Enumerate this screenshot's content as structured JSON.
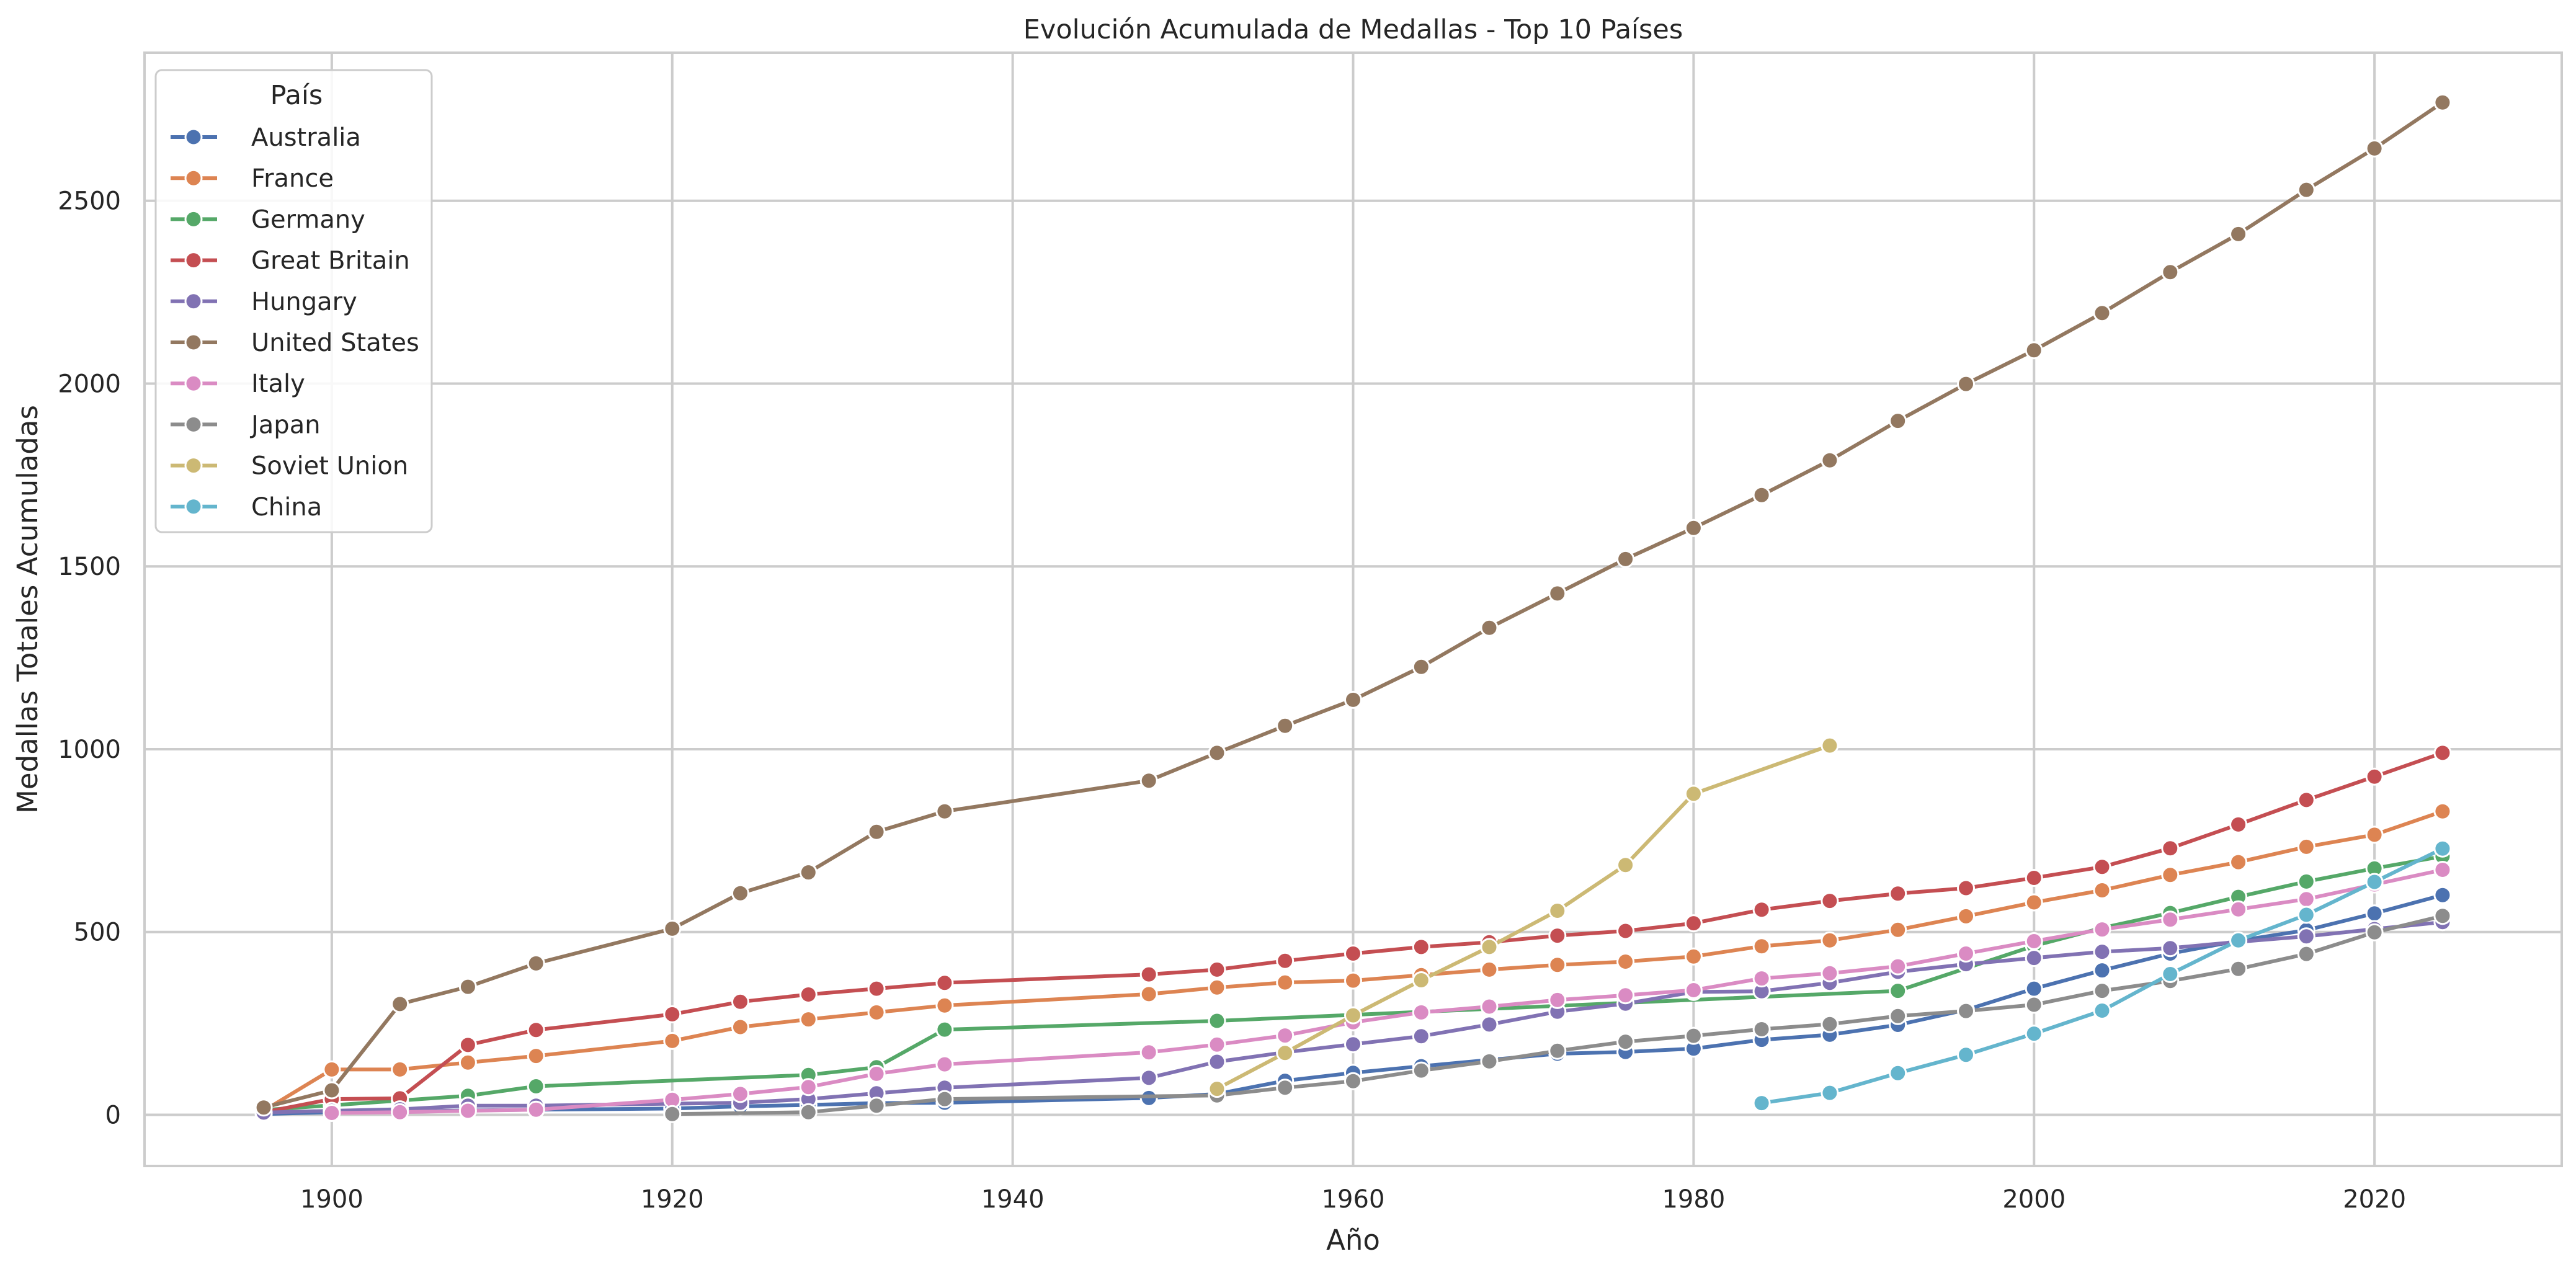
{
  "chart_data": {
    "type": "line",
    "title": "Evolución Acumulada de Medallas - Top 10 Países",
    "xlabel": "Año",
    "ylabel": "Medallas Totales Acumuladas",
    "xlim": [
      1889,
      2031
    ],
    "ylim": [
      -140,
      2905
    ],
    "xticks": [
      1900,
      1920,
      1940,
      1960,
      1980,
      2000,
      2020
    ],
    "yticks": [
      0,
      500,
      1000,
      1500,
      2000,
      2500
    ],
    "grid": true,
    "legend": {
      "title": "País",
      "placement": "top-left"
    },
    "series": [
      {
        "name": "Australia",
        "color": "#4c72b0",
        "x": [
          1896,
          1900,
          1904,
          1908,
          1912,
          1920,
          1924,
          1928,
          1932,
          1936,
          1948,
          1952,
          1956,
          1960,
          1964,
          1968,
          1972,
          1976,
          1980,
          1984,
          1988,
          1992,
          1996,
          2000,
          2004,
          2008,
          2012,
          2016,
          2020,
          2024
        ],
        "y": [
          2,
          7,
          9,
          12,
          14,
          17,
          23,
          27,
          32,
          33,
          46,
          57,
          93,
          115,
          133,
          150,
          167,
          172,
          181,
          205,
          219,
          246,
          287,
          345,
          395,
          441,
          476,
          505,
          551,
          601
        ]
      },
      {
        "name": "France",
        "color": "#dd8452",
        "x": [
          1896,
          1900,
          1904,
          1908,
          1912,
          1920,
          1924,
          1928,
          1932,
          1936,
          1948,
          1952,
          1956,
          1960,
          1964,
          1968,
          1972,
          1976,
          1980,
          1984,
          1988,
          1992,
          1996,
          2000,
          2004,
          2008,
          2012,
          2016,
          2020,
          2024
        ],
        "y": [
          11,
          124,
          124,
          143,
          161,
          202,
          240,
          261,
          280,
          299,
          330,
          348,
          362,
          367,
          382,
          397,
          410,
          419,
          433,
          461,
          477,
          506,
          543,
          581,
          614,
          656,
          691,
          733,
          766,
          830
        ]
      },
      {
        "name": "Germany",
        "color": "#55a868",
        "x": [
          1896,
          1900,
          1904,
          1908,
          1912,
          1928,
          1932,
          1936,
          1952,
          1992,
          2000,
          2004,
          2008,
          2012,
          2016,
          2020,
          2024
        ],
        "y": [
          13,
          26,
          39,
          52,
          78,
          109,
          130,
          233,
          257,
          339,
          462,
          511,
          552,
          596,
          638,
          674,
          707
        ]
      },
      {
        "name": "Great Britain",
        "color": "#c44e52",
        "x": [
          1896,
          1900,
          1904,
          1908,
          1912,
          1920,
          1924,
          1928,
          1932,
          1936,
          1948,
          1952,
          1956,
          1960,
          1964,
          1968,
          1972,
          1976,
          1980,
          1984,
          1988,
          1992,
          1996,
          2000,
          2004,
          2008,
          2012,
          2016,
          2020,
          2024
        ],
        "y": [
          7,
          43,
          45,
          191,
          232,
          275,
          309,
          329,
          345,
          361,
          384,
          397,
          421,
          441,
          459,
          472,
          490,
          503,
          524,
          561,
          585,
          605,
          620,
          648,
          678,
          729,
          794,
          861,
          925,
          990
        ]
      },
      {
        "name": "Hungary",
        "color": "#8172b3",
        "x": [
          1896,
          1900,
          1904,
          1908,
          1912,
          1924,
          1928,
          1932,
          1936,
          1948,
          1952,
          1956,
          1960,
          1964,
          1968,
          1972,
          1976,
          1980,
          1984,
          1988,
          1992,
          1996,
          2000,
          2004,
          2008,
          2012,
          2016,
          2020,
          2024
        ],
        "y": [
          6,
          11,
          15,
          25,
          25,
          33,
          43,
          59,
          74,
          101,
          145,
          171,
          193,
          215,
          247,
          282,
          304,
          336,
          338,
          361,
          391,
          412,
          429,
          446,
          456,
          473,
          488,
          508,
          527
        ]
      },
      {
        "name": "United States",
        "color": "#937860",
        "x": [
          1896,
          1900,
          1904,
          1908,
          1912,
          1920,
          1924,
          1928,
          1932,
          1936,
          1948,
          1952,
          1956,
          1960,
          1964,
          1968,
          1972,
          1976,
          1980,
          1984,
          1988,
          1992,
          1996,
          2000,
          2004,
          2008,
          2012,
          2016,
          2020,
          2024
        ],
        "y": [
          20,
          67,
          303,
          350,
          414,
          509,
          606,
          663,
          774,
          830,
          914,
          990,
          1064,
          1135,
          1225,
          1332,
          1426,
          1520,
          1605,
          1695,
          1790,
          1898,
          1999,
          2091,
          2193,
          2305,
          2409,
          2530,
          2643,
          2769
        ]
      },
      {
        "name": "Italy",
        "color": "#da8bc3",
        "x": [
          1900,
          1904,
          1908,
          1912,
          1920,
          1924,
          1928,
          1932,
          1936,
          1948,
          1952,
          1956,
          1960,
          1964,
          1968,
          1972,
          1976,
          1980,
          1984,
          1988,
          1992,
          1996,
          2000,
          2004,
          2008,
          2012,
          2016,
          2020,
          2024
        ],
        "y": [
          5,
          7,
          11,
          14,
          41,
          57,
          76,
          112,
          138,
          171,
          192,
          217,
          253,
          280,
          296,
          314,
          327,
          341,
          373,
          387,
          406,
          441,
          475,
          507,
          534,
          562,
          590,
          630,
          670
        ]
      },
      {
        "name": "Japan",
        "color": "#8c8c8c",
        "x": [
          1920,
          1928,
          1932,
          1936,
          1952,
          1956,
          1960,
          1964,
          1968,
          1972,
          1976,
          1980,
          1984,
          1988,
          1992,
          1996,
          2000,
          2004,
          2008,
          2012,
          2016,
          2020,
          2024
        ],
        "y": [
          2,
          7,
          25,
          43,
          53,
          74,
          92,
          121,
          146,
          175,
          200,
          216,
          234,
          248,
          270,
          284,
          301,
          339,
          366,
          399,
          440,
          499,
          544
        ]
      },
      {
        "name": "Soviet Union",
        "color": "#ccb974",
        "x": [
          1952,
          1956,
          1960,
          1964,
          1968,
          1972,
          1976,
          1980,
          1988
        ],
        "y": [
          71,
          169,
          272,
          368,
          459,
          558,
          683,
          878,
          1010
        ]
      },
      {
        "name": "China",
        "color": "#64b5cd",
        "x": [
          1984,
          1988,
          1992,
          1996,
          2000,
          2004,
          2008,
          2012,
          2016,
          2020,
          2024
        ],
        "y": [
          32,
          60,
          114,
          164,
          222,
          285,
          385,
          477,
          547,
          637,
          728
        ]
      }
    ]
  }
}
